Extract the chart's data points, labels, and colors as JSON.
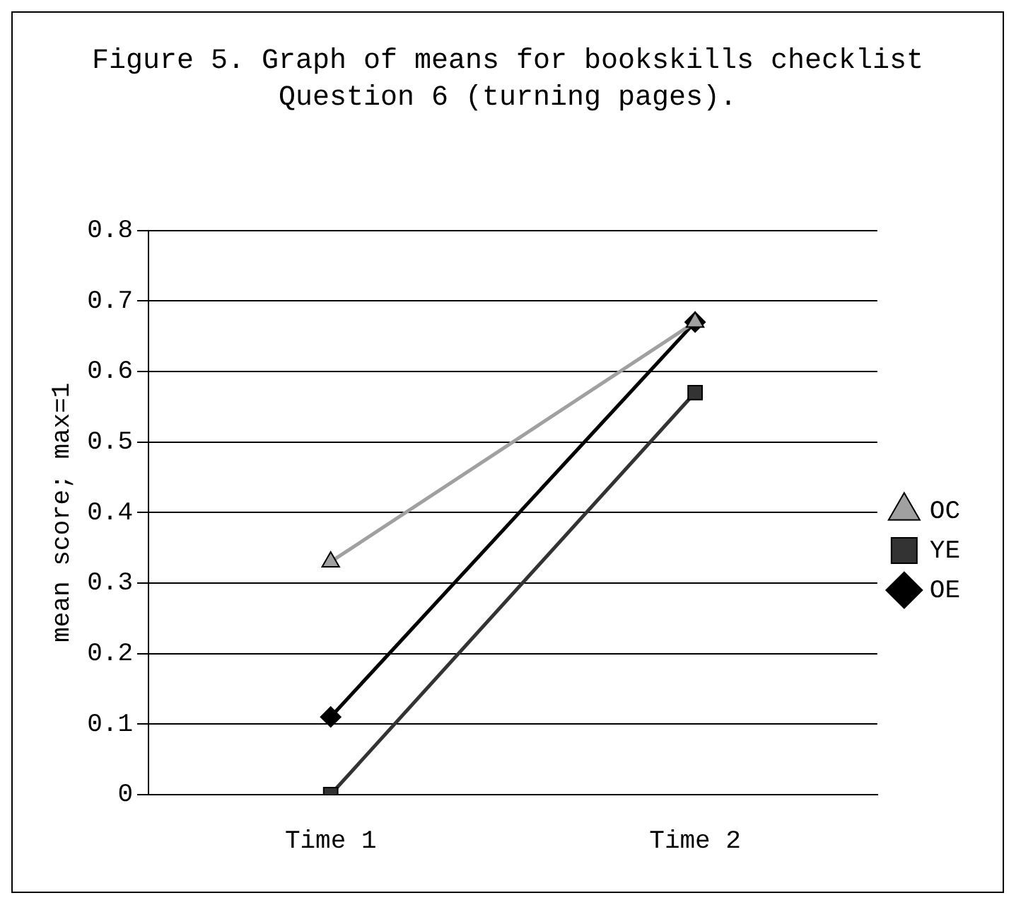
{
  "chart_data": {
    "type": "line",
    "title": "Figure 5. Graph of means for bookskills checklist Question 6 (turning pages).",
    "ylabel": "mean score; max=1",
    "categories": [
      "Time 1",
      "Time 2"
    ],
    "series": [
      {
        "name": "OE",
        "color": "#000000",
        "marker": "diamond",
        "values": [
          0.11,
          0.67
        ]
      },
      {
        "name": "YE",
        "color": "#333333",
        "marker": "square",
        "values": [
          0,
          0.57
        ]
      },
      {
        "name": "OC",
        "color": "#a0a0a0",
        "marker": "triangle",
        "values": [
          0.33,
          0.67
        ]
      }
    ],
    "ylim": [
      0,
      0.8
    ],
    "yticks": [
      0,
      0.1,
      0.2,
      0.3,
      0.4,
      0.5,
      0.6,
      0.7,
      0.8
    ],
    "grid": "y",
    "legend": "right",
    "line_style": "solid"
  }
}
